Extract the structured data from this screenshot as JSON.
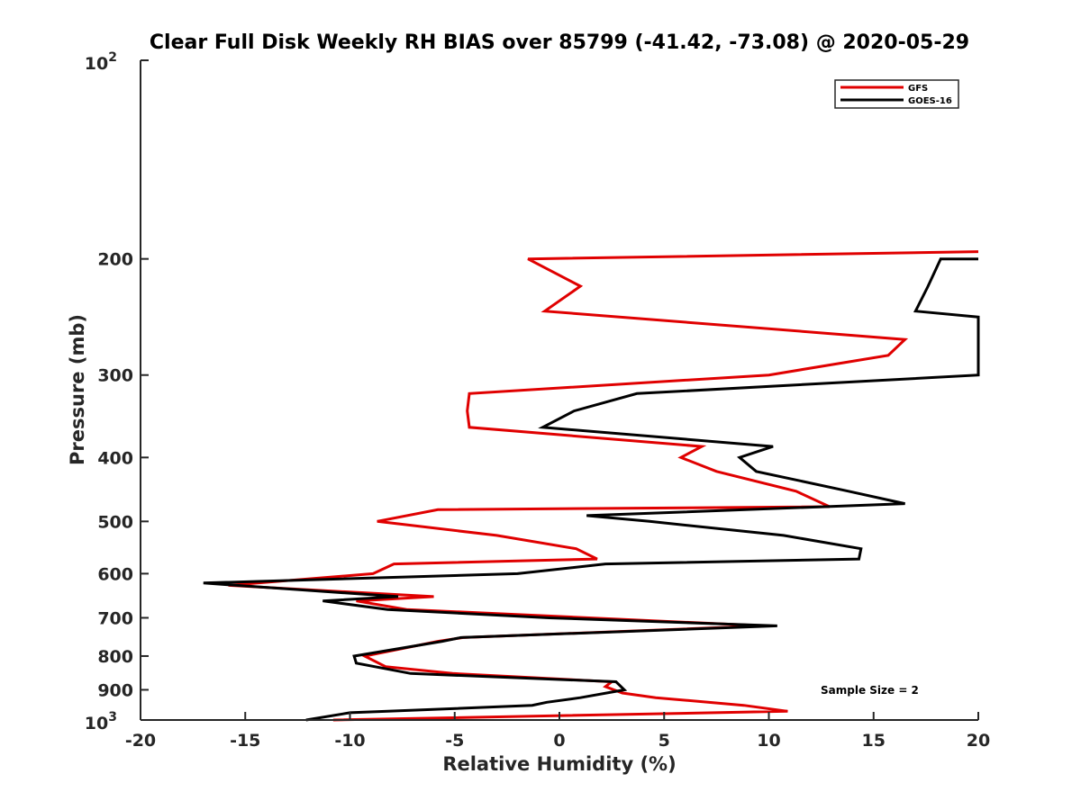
{
  "chart_data": {
    "type": "line",
    "title": "Clear Full Disk Weekly RH BIAS over 85799 (-41.42, -73.08) @ 2020-05-29",
    "xlabel": "Relative Humidity (%)",
    "ylabel": "Pressure (mb)",
    "xlim": [
      -20,
      20
    ],
    "ylim": [
      100,
      1000
    ],
    "yscale": "log",
    "y_reversed": true,
    "x_ticks": [
      "-20",
      "-15",
      "-10",
      "-5",
      "0",
      "5",
      "10",
      "15",
      "20"
    ],
    "y_ticks": [
      200,
      300,
      400,
      500,
      600,
      700,
      800,
      900
    ],
    "y_tick_labels": [
      "200",
      "300",
      "400",
      "500",
      "600",
      "700",
      "800",
      "900"
    ],
    "y_top_label": {
      "base": "10",
      "exp": "2"
    },
    "y_bottom_label": {
      "base": "10",
      "exp": "3"
    },
    "legend_position": "top-right",
    "annotation": "Sample Size = 2",
    "series": [
      {
        "name": "GFS",
        "color": "#e00000",
        "points": [
          [
            20,
            195
          ],
          [
            -1.5,
            200
          ],
          [
            1,
            220
          ],
          [
            -0.7,
            240
          ],
          [
            16.5,
            265
          ],
          [
            15.7,
            280
          ],
          [
            10,
            300
          ],
          [
            -4.3,
            320
          ],
          [
            -4.4,
            340
          ],
          [
            -4.3,
            360
          ],
          [
            6.8,
            385
          ],
          [
            5.8,
            400
          ],
          [
            7.5,
            420
          ],
          [
            11.3,
            450
          ],
          [
            12.9,
            475
          ],
          [
            -5.8,
            480
          ],
          [
            -8.7,
            500
          ],
          [
            -3,
            525
          ],
          [
            0.8,
            550
          ],
          [
            1.8,
            570
          ],
          [
            -7.9,
            580
          ],
          [
            -8.9,
            600
          ],
          [
            -15.8,
            625
          ],
          [
            -6,
            650
          ],
          [
            -9.7,
            660
          ],
          [
            -7.3,
            680
          ],
          [
            9.8,
            720
          ],
          [
            -4.6,
            750
          ],
          [
            -5.8,
            760
          ],
          [
            -9.3,
            800
          ],
          [
            -8.3,
            830
          ],
          [
            -5.1,
            850
          ],
          [
            2.5,
            875
          ],
          [
            2.2,
            890
          ],
          [
            3,
            910
          ],
          [
            4.6,
            925
          ],
          [
            8.8,
            950
          ],
          [
            10.9,
            970
          ],
          [
            -10.8,
            1000
          ]
        ]
      },
      {
        "name": "GOES-16",
        "color": "#000000",
        "points": [
          [
            20,
            200
          ],
          [
            18.2,
            200
          ],
          [
            17.6,
            220
          ],
          [
            17,
            240
          ],
          [
            20,
            245
          ],
          [
            20,
            300
          ],
          [
            3.7,
            320
          ],
          [
            0.7,
            340
          ],
          [
            -0.8,
            360
          ],
          [
            10.2,
            385
          ],
          [
            8.6,
            400
          ],
          [
            9.4,
            420
          ],
          [
            13.8,
            450
          ],
          [
            16.5,
            470
          ],
          [
            1.3,
            490
          ],
          [
            4.3,
            500
          ],
          [
            10.7,
            525
          ],
          [
            14.4,
            550
          ],
          [
            14.3,
            570
          ],
          [
            2.2,
            580
          ],
          [
            -2,
            600
          ],
          [
            -17,
            620
          ],
          [
            -7.7,
            650
          ],
          [
            -11.3,
            660
          ],
          [
            -8.2,
            680
          ],
          [
            -0.5,
            700
          ],
          [
            10.4,
            720
          ],
          [
            -4.7,
            750
          ],
          [
            -5.6,
            760
          ],
          [
            -9.8,
            800
          ],
          [
            -9.7,
            820
          ],
          [
            -7.1,
            850
          ],
          [
            2.7,
            875
          ],
          [
            3.1,
            900
          ],
          [
            1,
            925
          ],
          [
            -0.6,
            940
          ],
          [
            -1.3,
            950
          ],
          [
            -8.2,
            970
          ],
          [
            -10,
            975
          ],
          [
            -12.1,
            1000
          ]
        ]
      }
    ]
  }
}
